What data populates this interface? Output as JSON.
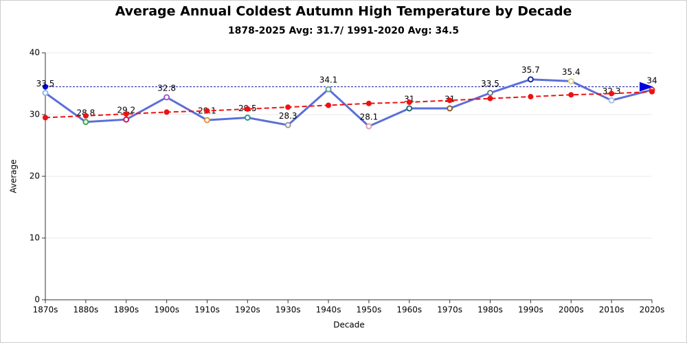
{
  "chart_data": {
    "type": "line",
    "title": "Average Annual Coldest Autumn High Temperature by Decade",
    "subtitle": "1878-2025 Avg: 31.7/ 1991-2020 Avg: 34.5",
    "x_label": "Decade",
    "y_label": "Average",
    "categories": [
      "1870s",
      "1880s",
      "1890s",
      "1900s",
      "1910s",
      "1920s",
      "1930s",
      "1940s",
      "1950s",
      "1960s",
      "1970s",
      "1980s",
      "1990s",
      "2000s",
      "2010s",
      "2020s"
    ],
    "series": [
      {
        "color": "#5b6fd8",
        "values": [
          33.5,
          28.8,
          29.2,
          32.8,
          29.1,
          29.5,
          28.3,
          34.1,
          28.1,
          31,
          31,
          33.5,
          35.7,
          35.4,
          32.3,
          34
        ],
        "marker_colors": [
          "#8fb4e8",
          "#3aa84a",
          "#c0204a",
          "#a05ac8",
          "#e09a30",
          "#2a9a8a",
          "#9a9a9a",
          "#6aa0a0",
          "#e0a0b0",
          "#206a6a",
          "#8a5a2a",
          "#6a7a9a",
          "#1a2aa0",
          "#d8d880",
          "#a8c0e0",
          "#e03030"
        ]
      },
      {
        "color": "#ee1111",
        "dashed": true,
        "values": [
          29.5,
          29.8,
          30.1,
          30.4,
          30.6,
          30.9,
          31.2,
          31.5,
          31.8,
          32.0,
          32.3,
          32.6,
          32.9,
          33.2,
          33.4,
          33.7
        ]
      }
    ],
    "reference_line": {
      "value": 34.5,
      "color": "#1a1aa0"
    },
    "ylim": [
      0,
      40
    ],
    "yticks": [
      0,
      10,
      20,
      30,
      40
    ],
    "grid": true
  }
}
